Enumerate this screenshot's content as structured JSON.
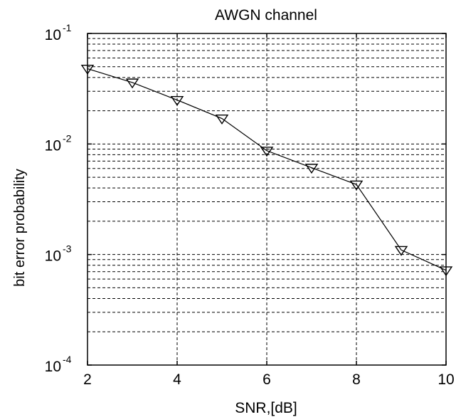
{
  "chart_data": {
    "type": "line",
    "title": "AWGN channel",
    "xlabel": "SNR,[dB]",
    "ylabel": "bit error probability",
    "xlim": [
      2,
      10
    ],
    "ylim": [
      0.0001,
      0.1
    ],
    "yscale": "log",
    "grid": true,
    "x_ticks": [
      {
        "value": 2,
        "label": "2"
      },
      {
        "value": 4,
        "label": "4"
      },
      {
        "value": 6,
        "label": "6"
      },
      {
        "value": 8,
        "label": "8"
      },
      {
        "value": 10,
        "label": "10"
      }
    ],
    "y_ticks": [
      {
        "value": 0.1,
        "base": "10",
        "exp": "-1"
      },
      {
        "value": 0.01,
        "base": "10",
        "exp": "-2"
      },
      {
        "value": 0.001,
        "base": "10",
        "exp": "-3"
      },
      {
        "value": 0.0001,
        "base": "10",
        "exp": "-4"
      }
    ],
    "series": [
      {
        "marker": "triangle-down",
        "color": "#000000",
        "x": [
          2,
          3,
          4,
          5,
          6,
          7,
          8,
          9,
          10
        ],
        "values": [
          0.048,
          0.036,
          0.025,
          0.017,
          0.0087,
          0.0061,
          0.0043,
          0.0011,
          0.00072
        ]
      }
    ]
  }
}
